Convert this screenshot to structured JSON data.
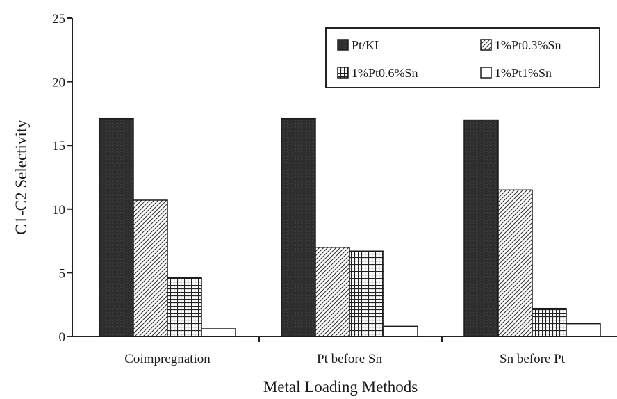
{
  "chart_data": {
    "type": "bar",
    "title": "",
    "xlabel": "Metal Loading Methods",
    "ylabel": "C1-C2 Selectivity",
    "ylim": [
      0,
      25
    ],
    "yticks": [
      "0",
      "5",
      "10",
      "15",
      "20",
      "25"
    ],
    "categories": [
      "Coimpregnation",
      "Pt before Sn",
      "Sn before Pt"
    ],
    "series": [
      {
        "name": "Pt/KL",
        "values": [
          17.1,
          17.1,
          17.0
        ],
        "color": "#2b2b2b",
        "pattern": "solid-dark"
      },
      {
        "name": "1%Pt0.3%Sn",
        "values": [
          10.7,
          7.0,
          11.5
        ],
        "color": "#ffffff",
        "pattern": "diagonal"
      },
      {
        "name": "1%Pt0.6%Sn",
        "values": [
          4.6,
          6.7,
          2.2
        ],
        "color": "#ffffff",
        "pattern": "crosshatch"
      },
      {
        "name": "1%Pt1%Sn",
        "values": [
          0.6,
          0.8,
          1.0
        ],
        "color": "#ffffff",
        "pattern": "empty"
      }
    ],
    "legend_position": "top-right",
    "grid": false
  }
}
